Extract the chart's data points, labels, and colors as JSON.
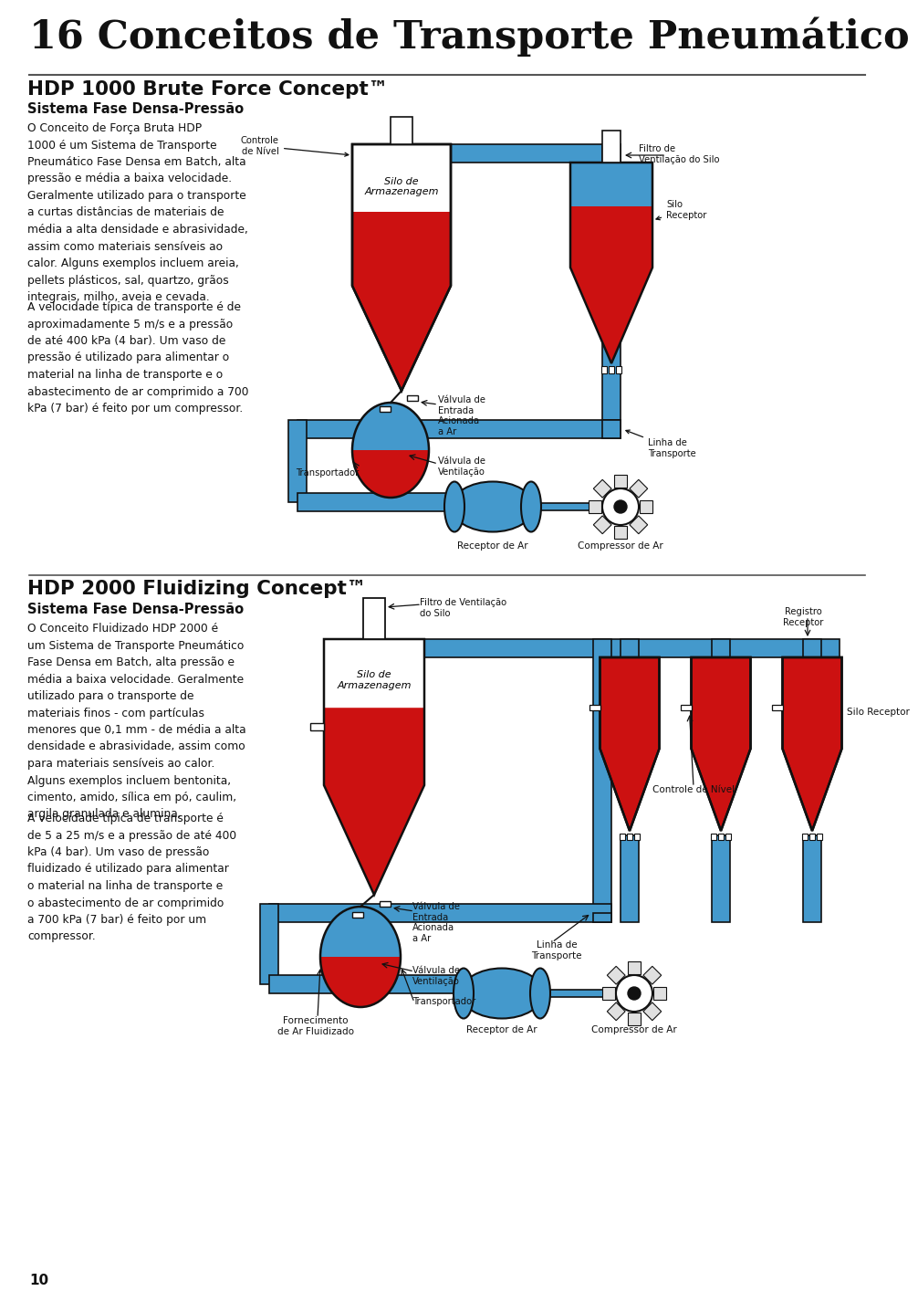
{
  "title": "16 Conceitos de Transporte Pneumático",
  "bg": "#ffffff",
  "red": "#cc1111",
  "blue": "#4499cc",
  "black": "#111111",
  "lgray": "#aaaaaa",
  "s1_title": "HDP 1000 Brute Force Concept™",
  "s1_sub": "Sistema Fase Densa-Pressão",
  "s1_p1": "O Conceito de Força Bruta HDP\n1000 é um Sistema de Transporte\nPneumático Fase Densa em Batch, alta\npressão e média a baixa velocidade.\nGeralmente utilizado para o transporte\na curtas distâncias de materiais de\nmédia a alta densidade e abrasividade,\nassim como materiais sensíveis ao\ncalor. Alguns exemplos incluem areia,\npellets plásticos, sal, quartzo, grãos\nintegrais, milho, aveia e cevada.",
  "s1_p2": "A velocidade típica de transporte é de\naproximadamente 5 m/s e a pressão\nde até 400 kPa (4 bar). Um vaso de\npressão é utilizado para alimentar o\nmaterial na linha de transporte e o\nabastecimento de ar comprimido a 700\nkPa (7 bar) é feito por um compressor.",
  "s2_title": "HDP 2000 Fluidizing Concept™",
  "s2_sub": "Sistema Fase Densa-Pressão",
  "s2_p1": "O Conceito Fluidizado HDP 2000 é\num Sistema de Transporte Pneumático\nFase Densa em Batch, alta pressão e\nmédia a baixa velocidade. Geralmente\nutilizado para o transporte de\nmateriais finos - com partículas\nmenores que 0,1 mm - de média a alta\ndensidade e abrasividade, assim como\npara materiais sensíveis ao calor.\nAlguns exemplos incluem bentonita,\ncimento, amido, sílica em pó, caulim,\nargila granulada e alumina.",
  "s2_p2": "A velocidade típica de transporte é\nde 5 a 25 m/s e a pressão de até 400\nkPa (4 bar). Um vaso de pressão\nfluidizado é utilizado para alimentar\no material na linha de transporte e\no abastecimento de ar comprimido\na 700 kPa (7 bar) é feito por um\ncompressor.",
  "page": "10"
}
